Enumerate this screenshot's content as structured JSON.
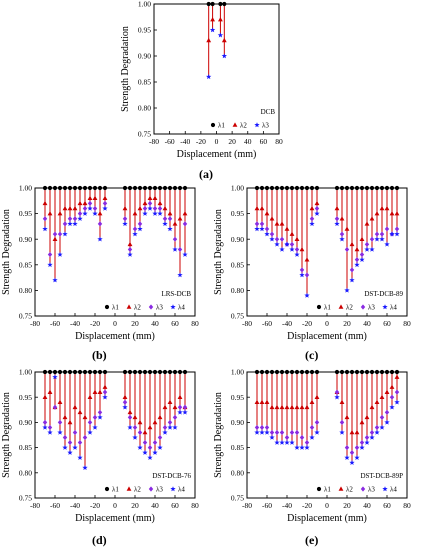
{
  "figure": {
    "captions": [
      "(a)",
      "(b)",
      "(c)",
      "(d)",
      "(e)"
    ]
  },
  "colors": {
    "lambda1": "#000000",
    "lambda2": "#cc0000",
    "lambda3": "#8a2be2",
    "lambda4": "#1a1aff",
    "stem": "#cc0000"
  },
  "chart_data": [
    {
      "id": "a",
      "type": "scatter",
      "title": "DCB",
      "xlabel": "Displacement (mm)",
      "ylabel": "Strength Degradation",
      "xlim": [
        -80,
        80
      ],
      "ylim": [
        0.75,
        1.0
      ],
      "xticks": [
        "-80",
        "-60",
        "-40",
        "-20",
        "0",
        "20",
        "40",
        "60",
        "80"
      ],
      "yticks": [
        "0.75",
        "0.80",
        "0.85",
        "0.90",
        "0.95",
        "1.00"
      ],
      "legend": [
        "λ1",
        "λ2",
        "λ3"
      ],
      "x": [
        -10,
        -5,
        5,
        10
      ],
      "series": [
        {
          "name": "λ1",
          "marker": "circle",
          "values": [
            1.0,
            1.0,
            1.0,
            1.0
          ]
        },
        {
          "name": "λ2",
          "marker": "triangle",
          "values": [
            0.93,
            0.97,
            0.97,
            0.93
          ]
        },
        {
          "name": "λ3",
          "marker": "star",
          "values": [
            0.86,
            0.95,
            0.94,
            0.9
          ]
        }
      ]
    },
    {
      "id": "b",
      "type": "scatter",
      "title": "LRS-DCB",
      "xlabel": "Displacement (mm)",
      "ylabel": "Strength Degradation",
      "xlim": [
        -80,
        80
      ],
      "ylim": [
        0.75,
        1.0
      ],
      "xticks": [
        "-80",
        "-60",
        "-40",
        "-20",
        "0",
        "20",
        "40",
        "60",
        "80"
      ],
      "yticks": [
        "0.75",
        "0.80",
        "0.85",
        "0.90",
        "0.95",
        "1.00"
      ],
      "legend": [
        "λ1",
        "λ2",
        "λ3",
        "λ4"
      ],
      "x": [
        -70,
        -65,
        -60,
        -55,
        -50,
        -45,
        -40,
        -35,
        -30,
        -25,
        -20,
        -15,
        -10,
        10,
        15,
        20,
        25,
        30,
        35,
        40,
        45,
        50,
        55,
        60,
        65,
        70
      ],
      "series": [
        {
          "name": "λ1",
          "marker": "circle",
          "values": [
            1,
            1,
            1,
            1,
            1,
            1,
            1,
            1,
            1,
            1,
            1,
            1,
            1,
            1,
            1,
            1,
            1,
            1,
            1,
            1,
            1,
            1,
            1,
            1,
            1,
            1
          ]
        },
        {
          "name": "λ2",
          "marker": "triangle",
          "values": [
            0.97,
            0.95,
            0.9,
            0.95,
            0.96,
            0.96,
            0.96,
            0.97,
            0.97,
            0.98,
            0.98,
            0.95,
            0.98,
            0.96,
            0.89,
            0.95,
            0.96,
            0.97,
            0.98,
            0.98,
            0.97,
            0.96,
            0.95,
            0.93,
            0.94,
            0.95
          ]
        },
        {
          "name": "λ3",
          "marker": "diamond",
          "values": [
            0.94,
            0.87,
            0.91,
            0.91,
            0.93,
            0.94,
            0.94,
            0.95,
            0.96,
            0.97,
            0.96,
            0.93,
            0.97,
            0.94,
            0.88,
            0.92,
            0.93,
            0.96,
            0.97,
            0.96,
            0.96,
            0.94,
            0.94,
            0.9,
            0.88,
            0.93
          ]
        },
        {
          "name": "λ4",
          "marker": "star",
          "values": [
            0.92,
            0.85,
            0.82,
            0.87,
            0.91,
            0.93,
            0.93,
            0.94,
            0.95,
            0.96,
            0.95,
            0.9,
            0.96,
            0.93,
            0.87,
            0.91,
            0.92,
            0.95,
            0.96,
            0.95,
            0.95,
            0.93,
            0.92,
            0.88,
            0.83,
            0.87
          ]
        }
      ]
    },
    {
      "id": "c",
      "type": "scatter",
      "title": "DST-DCB-89",
      "xlabel": "Displacement (mm)",
      "ylabel": "Strength Degradation",
      "xlim": [
        -80,
        80
      ],
      "ylim": [
        0.75,
        1.0
      ],
      "xticks": [
        "-80",
        "-60",
        "-40",
        "-20",
        "0",
        "20",
        "40",
        "60",
        "80"
      ],
      "yticks": [
        "0.75",
        "0.80",
        "0.85",
        "0.90",
        "0.95",
        "1.00"
      ],
      "legend": [
        "λ1",
        "λ2",
        "λ3",
        "λ4"
      ],
      "x": [
        -70,
        -65,
        -60,
        -55,
        -50,
        -45,
        -40,
        -35,
        -30,
        -25,
        -20,
        -15,
        -10,
        10,
        15,
        20,
        25,
        30,
        35,
        40,
        45,
        50,
        55,
        60,
        65,
        70
      ],
      "series": [
        {
          "name": "λ1",
          "marker": "circle",
          "values": [
            1,
            1,
            1,
            1,
            1,
            1,
            1,
            1,
            1,
            1,
            1,
            1,
            1,
            1,
            1,
            1,
            1,
            1,
            1,
            1,
            1,
            1,
            1,
            1,
            1,
            1
          ]
        },
        {
          "name": "λ2",
          "marker": "triangle",
          "values": [
            0.96,
            0.96,
            0.95,
            0.94,
            0.93,
            0.93,
            0.92,
            0.91,
            0.9,
            0.88,
            0.86,
            0.96,
            0.97,
            0.96,
            0.94,
            0.92,
            0.89,
            0.88,
            0.9,
            0.93,
            0.94,
            0.95,
            0.96,
            0.96,
            0.95,
            0.95
          ]
        },
        {
          "name": "λ3",
          "marker": "diamond",
          "values": [
            0.93,
            0.93,
            0.92,
            0.91,
            0.9,
            0.9,
            0.89,
            0.89,
            0.88,
            0.84,
            0.83,
            0.94,
            0.96,
            0.94,
            0.91,
            0.88,
            0.84,
            0.86,
            0.87,
            0.89,
            0.9,
            0.91,
            0.91,
            0.92,
            0.91,
            0.92
          ]
        },
        {
          "name": "λ4",
          "marker": "star",
          "values": [
            0.92,
            0.92,
            0.91,
            0.9,
            0.89,
            0.88,
            0.89,
            0.88,
            0.87,
            0.83,
            0.79,
            0.93,
            0.95,
            0.93,
            0.9,
            0.8,
            0.82,
            0.85,
            0.86,
            0.88,
            0.88,
            0.9,
            0.9,
            0.89,
            0.91,
            0.91
          ]
        }
      ]
    },
    {
      "id": "d",
      "type": "scatter",
      "title": "DST-DCB-76",
      "xlabel": "Displacement (mm)",
      "ylabel": "Strength Degradation",
      "xlim": [
        -80,
        80
      ],
      "ylim": [
        0.75,
        1.0
      ],
      "xticks": [
        "-80",
        "-60",
        "-40",
        "-20",
        "0",
        "20",
        "40",
        "60",
        "80"
      ],
      "yticks": [
        "0.75",
        "0.80",
        "0.85",
        "0.90",
        "0.95",
        "1.00"
      ],
      "legend": [
        "λ1",
        "λ2",
        "λ3",
        "λ4"
      ],
      "x": [
        -70,
        -65,
        -60,
        -55,
        -50,
        -45,
        -40,
        -35,
        -30,
        -25,
        -20,
        -15,
        -10,
        10,
        15,
        20,
        25,
        30,
        35,
        40,
        45,
        50,
        55,
        60,
        65,
        70
      ],
      "series": [
        {
          "name": "λ1",
          "marker": "circle",
          "values": [
            1,
            1,
            1,
            1,
            1,
            1,
            1,
            1,
            1,
            1,
            1,
            1,
            1,
            1,
            1,
            1,
            1,
            1,
            1,
            1,
            1,
            1,
            1,
            1,
            1,
            1
          ]
        },
        {
          "name": "λ2",
          "marker": "triangle",
          "values": [
            0.95,
            0.96,
            0.93,
            0.94,
            0.91,
            0.9,
            0.93,
            0.92,
            0.91,
            0.95,
            0.96,
            0.96,
            0.97,
            0.95,
            0.92,
            0.91,
            0.9,
            0.88,
            0.89,
            0.9,
            0.91,
            0.93,
            0.94,
            0.93,
            0.95,
            0.93
          ]
        },
        {
          "name": "λ3",
          "marker": "diamond",
          "values": [
            0.9,
            0.89,
            0.93,
            0.9,
            0.87,
            0.86,
            0.88,
            0.86,
            0.87,
            0.9,
            0.91,
            0.92,
            0.96,
            0.94,
            0.91,
            0.89,
            0.88,
            0.86,
            0.85,
            0.86,
            0.87,
            0.89,
            0.9,
            0.91,
            0.93,
            0.93
          ]
        },
        {
          "name": "λ4",
          "marker": "star",
          "values": [
            0.89,
            0.88,
            0.99,
            0.88,
            0.85,
            0.84,
            0.85,
            0.83,
            0.81,
            0.88,
            0.89,
            0.91,
            0.95,
            0.93,
            0.89,
            0.87,
            0.85,
            0.84,
            0.83,
            0.84,
            0.85,
            0.88,
            0.89,
            0.89,
            0.92,
            0.92
          ]
        }
      ]
    },
    {
      "id": "e",
      "type": "scatter",
      "title": "DST-DCB-89P",
      "xlabel": "Displacement (mm)",
      "ylabel": "Strength Degradation",
      "xlim": [
        -80,
        80
      ],
      "ylim": [
        0.75,
        1.0
      ],
      "xticks": [
        "-80",
        "-60",
        "-40",
        "-20",
        "0",
        "20",
        "40",
        "60",
        "80"
      ],
      "yticks": [
        "0.75",
        "0.80",
        "0.85",
        "0.90",
        "0.95",
        "1.00"
      ],
      "legend": [
        "λ1",
        "λ2",
        "λ3",
        "λ4"
      ],
      "x": [
        -70,
        -65,
        -60,
        -55,
        -50,
        -45,
        -40,
        -35,
        -30,
        -25,
        -20,
        -15,
        -10,
        10,
        15,
        20,
        25,
        30,
        35,
        40,
        45,
        50,
        55,
        60,
        65,
        70
      ],
      "series": [
        {
          "name": "λ1",
          "marker": "circle",
          "values": [
            1,
            1,
            1,
            1,
            1,
            1,
            1,
            1,
            1,
            1,
            1,
            1,
            1,
            1,
            1,
            1,
            1,
            1,
            1,
            1,
            1,
            1,
            1,
            1,
            1,
            1
          ]
        },
        {
          "name": "λ2",
          "marker": "triangle",
          "values": [
            0.94,
            0.94,
            0.94,
            0.93,
            0.93,
            0.93,
            0.93,
            0.93,
            0.93,
            0.93,
            0.93,
            0.94,
            0.95,
            0.96,
            0.94,
            0.91,
            0.88,
            0.88,
            0.9,
            0.91,
            0.93,
            0.94,
            0.95,
            0.96,
            0.97,
            0.99
          ]
        },
        {
          "name": "λ3",
          "marker": "diamond",
          "values": [
            0.89,
            0.89,
            0.89,
            0.88,
            0.88,
            0.88,
            0.87,
            0.88,
            0.88,
            0.87,
            0.86,
            0.89,
            0.9,
            0.96,
            0.9,
            0.85,
            0.84,
            0.85,
            0.86,
            0.87,
            0.88,
            0.89,
            0.91,
            0.92,
            0.95,
            0.96
          ]
        },
        {
          "name": "λ4",
          "marker": "star",
          "values": [
            0.88,
            0.88,
            0.88,
            0.87,
            0.86,
            0.86,
            0.86,
            0.86,
            0.85,
            0.85,
            0.85,
            0.87,
            0.88,
            0.95,
            0.88,
            0.83,
            0.82,
            0.83,
            0.85,
            0.86,
            0.87,
            0.88,
            0.89,
            0.9,
            0.93,
            0.94
          ]
        }
      ]
    }
  ]
}
